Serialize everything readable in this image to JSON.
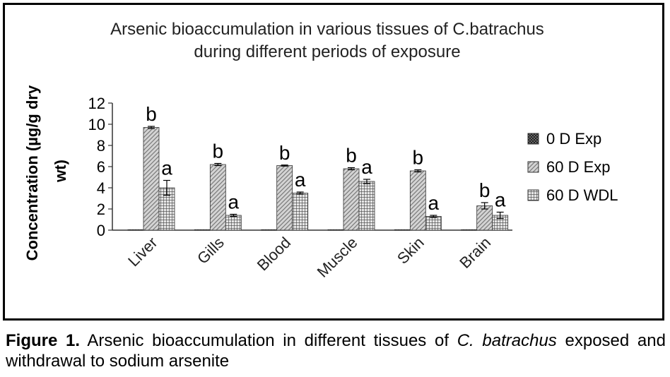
{
  "chart_data": {
    "type": "bar",
    "title": "Arsenic bioaccumulation in various tissues of C.batrachus",
    "subtitle": "during different periods of exposure",
    "xlabel": "",
    "ylabel": "Concentration (µg/g dry wt)",
    "ylabel_lines": [
      "Concentration (µg/g dry",
      "wt)"
    ],
    "ylim": [
      0,
      12
    ],
    "yticks": [
      "0",
      "2",
      "4",
      "6",
      "8",
      "10",
      "12"
    ],
    "grid": false,
    "legend_position": "right",
    "categories": [
      "Liver",
      "Gills",
      "Blood",
      "Muscle",
      "Skin",
      "Brain"
    ],
    "series": [
      {
        "name": "0 D Exp",
        "values": [
          0.05,
          0.05,
          0.05,
          0.05,
          0.05,
          0.05
        ],
        "errors": [
          0,
          0,
          0,
          0,
          0,
          0
        ],
        "labels": [
          "",
          "",
          "",
          "",
          "",
          ""
        ],
        "color": "#111111",
        "pattern": "checker"
      },
      {
        "name": "60 D Exp",
        "values": [
          9.7,
          6.2,
          6.1,
          5.8,
          5.6,
          2.3
        ],
        "errors": [
          0.1,
          0.1,
          0.05,
          0.1,
          0.1,
          0.3
        ],
        "labels": [
          "b",
          "b",
          "b",
          "b",
          "b",
          "b"
        ],
        "color": "#b8b8b8",
        "pattern": "diagonal"
      },
      {
        "name": "60 D WDL",
        "values": [
          4.0,
          1.4,
          3.5,
          4.6,
          1.3,
          1.4
        ],
        "errors": [
          0.7,
          0.1,
          0.1,
          0.2,
          0.1,
          0.3
        ],
        "labels": [
          "a",
          "a",
          "a",
          "a",
          "a",
          "a"
        ],
        "color": "#9a9a9a",
        "pattern": "grid"
      }
    ]
  },
  "caption": {
    "label": "Figure 1.",
    "text_before": " Arsenic bioaccumulation in different tissues of ",
    "species": "C. batrachus",
    "text_after": " exposed and withdrawal to sodium arsenite"
  }
}
